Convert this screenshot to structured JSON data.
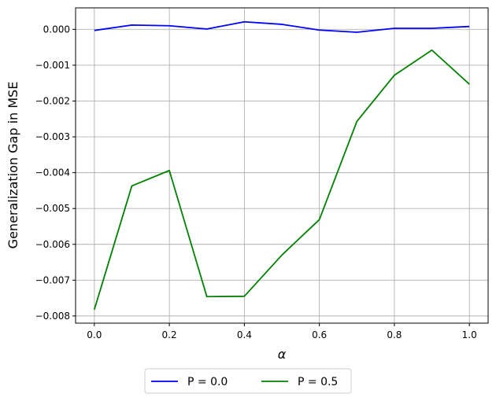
{
  "chart_data": {
    "type": "line",
    "title": "",
    "xlabel": "α",
    "ylabel": "Generalization Gap in MSE",
    "xlim": [
      -0.05,
      1.05
    ],
    "ylim": [
      -0.0082,
      0.0006
    ],
    "x": [
      0.0,
      0.1,
      0.2,
      0.3,
      0.4,
      0.5,
      0.6,
      0.7,
      0.8,
      0.9,
      1.0
    ],
    "xticks": [
      0.0,
      0.2,
      0.4,
      0.6,
      0.8,
      1.0
    ],
    "xtick_labels": [
      "0.0",
      "0.2",
      "0.4",
      "0.6",
      "0.8",
      "1.0"
    ],
    "yticks": [
      0.0,
      -0.001,
      -0.002,
      -0.003,
      -0.004,
      -0.005,
      -0.006,
      -0.007,
      -0.008
    ],
    "ytick_labels": [
      "0.000",
      "−0.001",
      "−0.002",
      "−0.003",
      "−0.004",
      "−0.005",
      "−0.006",
      "−0.007",
      "−0.008"
    ],
    "grid": true,
    "legend_position": "bottom-center outside",
    "series": [
      {
        "name": "P = 0.0",
        "color": "#0000ff",
        "values": [
          -3e-05,
          0.00012,
          0.0001,
          1e-05,
          0.00021,
          0.00014,
          -2e-05,
          -8e-05,
          3e-05,
          3e-05,
          8e-05
        ]
      },
      {
        "name": "P = 0.5",
        "color": "#008000",
        "values": [
          -0.00782,
          -0.00437,
          -0.00394,
          -0.00746,
          -0.00745,
          -0.0063,
          -0.00531,
          -0.00257,
          -0.00128,
          -0.00058,
          -0.00153
        ]
      }
    ]
  }
}
